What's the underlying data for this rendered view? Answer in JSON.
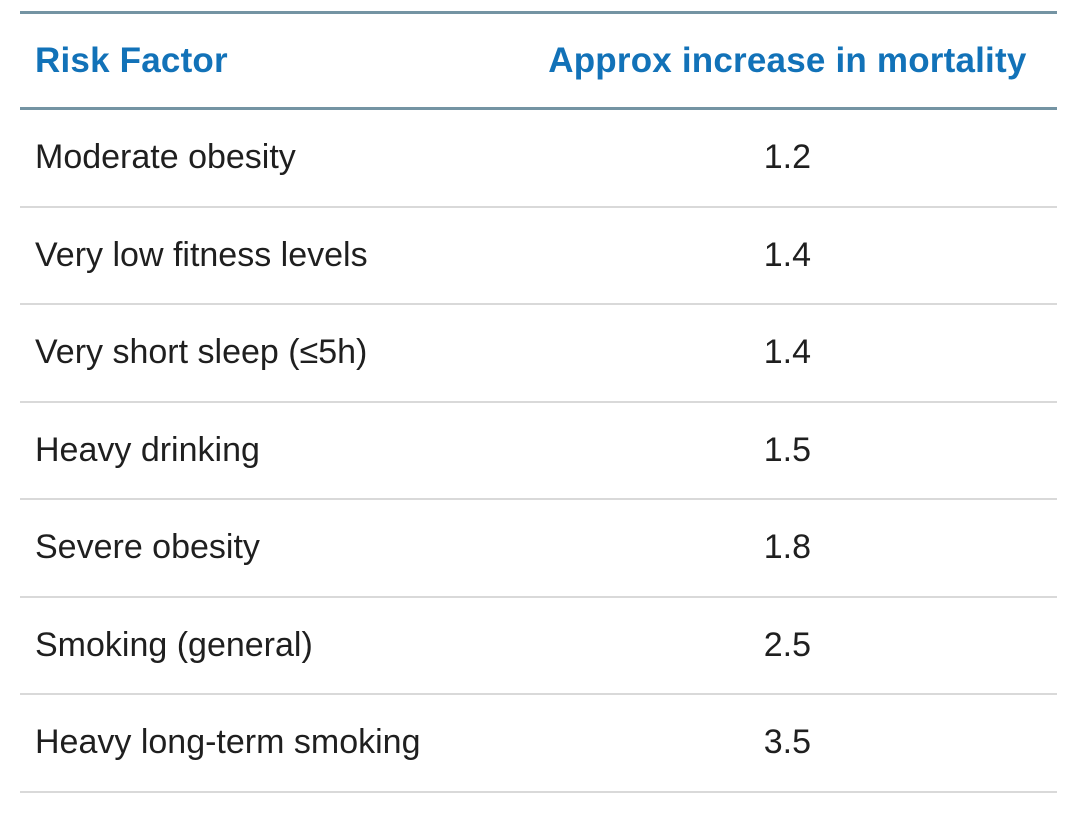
{
  "colors": {
    "header_text": "#1272B8",
    "header_border": "#7494A3",
    "row_separator": "#D9D9D9",
    "body_text": "#1F1F1F",
    "background": "#FFFFFF"
  },
  "table": {
    "headers": {
      "factor": "Risk Factor",
      "value": "Approx increase in mortality"
    },
    "rows": [
      {
        "factor": "Moderate obesity",
        "value": "1.2"
      },
      {
        "factor": "Very low fitness levels",
        "value": "1.4"
      },
      {
        "factor": "Very short sleep (≤5h)",
        "value": "1.4"
      },
      {
        "factor": "Heavy drinking",
        "value": "1.5"
      },
      {
        "factor": "Severe obesity",
        "value": "1.8"
      },
      {
        "factor": "Smoking (general)",
        "value": "2.5"
      },
      {
        "factor": "Heavy long-term smoking",
        "value": "3.5"
      }
    ]
  },
  "chart_data": {
    "type": "table",
    "title": "",
    "columns": [
      "Risk Factor",
      "Approx increase in mortality"
    ],
    "categories": [
      "Moderate obesity",
      "Very low fitness levels",
      "Very short sleep (≤5h)",
      "Heavy drinking",
      "Severe obesity",
      "Smoking (general)",
      "Heavy long-term smoking"
    ],
    "values": [
      1.2,
      1.4,
      1.4,
      1.5,
      1.8,
      2.5,
      3.5
    ],
    "layout": {
      "grid": "horizontal-row-separators",
      "header_style": "bold-blue",
      "value_alignment": "center"
    }
  }
}
